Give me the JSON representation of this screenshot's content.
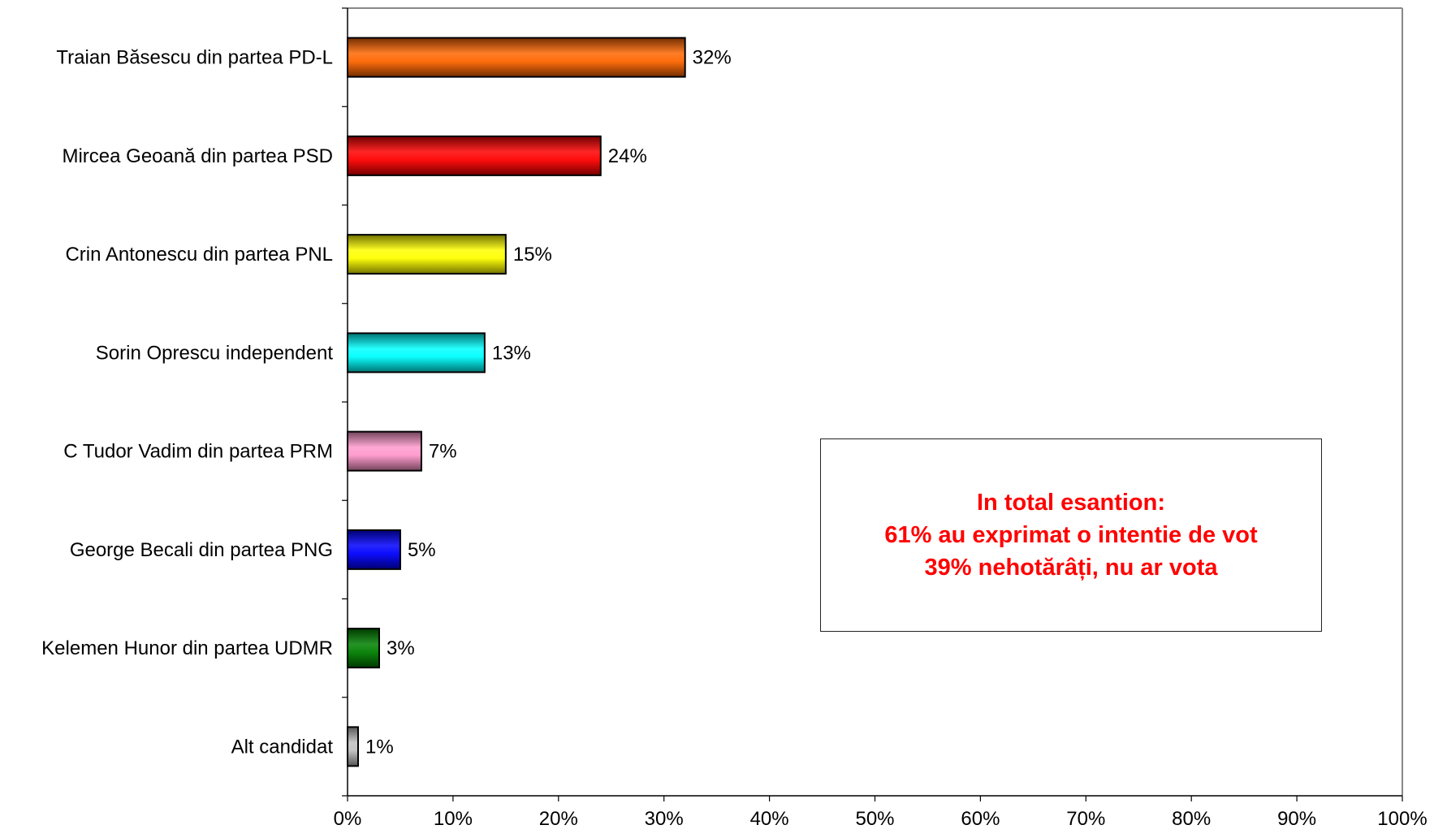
{
  "chart_data": {
    "type": "bar",
    "orientation": "horizontal",
    "categories": [
      "Traian Băsescu din partea PD-L",
      "Mircea Geoană din partea PSD",
      "Crin Antonescu din partea PNL",
      "Sorin Oprescu independent",
      "C Tudor Vadim din partea PRM",
      "George Becali din partea PNG",
      "Kelemen Hunor din partea UDMR",
      "Alt candidat"
    ],
    "values": [
      32,
      24,
      15,
      13,
      7,
      5,
      3,
      1
    ],
    "value_labels": [
      "32%",
      "24%",
      "15%",
      "13%",
      "7%",
      "5%",
      "3%",
      "1%"
    ],
    "colors": [
      "#ff6600",
      "#ff0000",
      "#ffff00",
      "#00ffff",
      "#ff99cc",
      "#0000ff",
      "#008000",
      "#c0c0c0"
    ],
    "xlim": [
      0,
      100
    ],
    "xticks": [
      "0%",
      "10%",
      "20%",
      "30%",
      "40%",
      "50%",
      "60%",
      "70%",
      "80%",
      "90%",
      "100%"
    ],
    "grid": false,
    "annotation": {
      "lines": [
        "In total esantion:",
        "61% au exprimat o intentie de vot",
        "39% nehotărâți, nu ar vota"
      ],
      "color": "#ff0000"
    }
  }
}
